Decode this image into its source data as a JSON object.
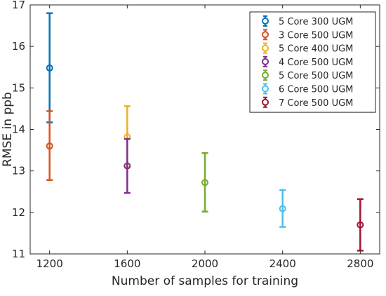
{
  "chart_data": {
    "type": "scatter",
    "subtype": "errorbar",
    "title": "",
    "xlabel": "Number of samples for training",
    "ylabel": "RMSE in ppb",
    "xlim": [
      1100,
      2900
    ],
    "ylim": [
      11,
      17
    ],
    "xticks": [
      1200,
      1600,
      2000,
      2400,
      2800
    ],
    "yticks": [
      11,
      12,
      13,
      14,
      15,
      16,
      17
    ],
    "grid": false,
    "legend_position": "top-right",
    "series": [
      {
        "name": "5 Core 300 UGM",
        "color": "#0072BD",
        "x": 1200,
        "y": 15.48,
        "ylow": 14.17,
        "yhigh": 16.8
      },
      {
        "name": "3 Core 500 UGM",
        "color": "#D95319",
        "x": 1200,
        "y": 13.6,
        "ylow": 12.78,
        "yhigh": 14.44
      },
      {
        "name": "5 Core 400 UGM",
        "color": "#EDB120",
        "x": 1600,
        "y": 13.82,
        "ylow": 13.09,
        "yhigh": 14.56
      },
      {
        "name": "4 Core 500 UGM",
        "color": "#7E2F8E",
        "x": 1600,
        "y": 13.12,
        "ylow": 12.47,
        "yhigh": 13.77
      },
      {
        "name": "5 Core 500 UGM",
        "color": "#77AC30",
        "x": 2000,
        "y": 12.72,
        "ylow": 12.02,
        "yhigh": 13.43
      },
      {
        "name": "6 Core 500 UGM",
        "color": "#4DBEEE",
        "x": 2400,
        "y": 12.09,
        "ylow": 11.65,
        "yhigh": 12.54
      },
      {
        "name": "7 Core 500 UGM",
        "color": "#A2142F",
        "x": 2800,
        "y": 11.7,
        "ylow": 11.08,
        "yhigh": 12.32
      }
    ]
  }
}
